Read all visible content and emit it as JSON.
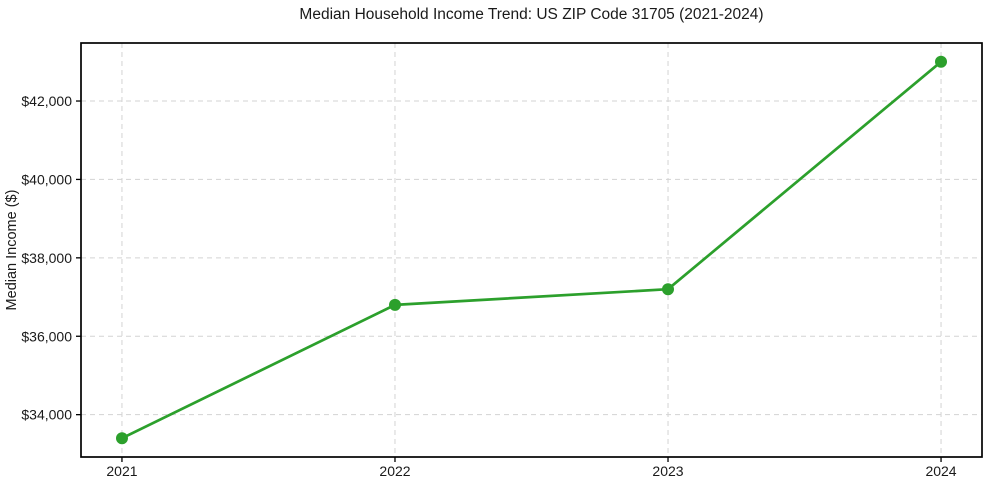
{
  "chart_data": {
    "type": "line",
    "title": "Median Household Income Trend: US ZIP Code 31705 (2021-2024)",
    "xlabel": "",
    "ylabel": "Median Income ($)",
    "x": [
      2021,
      2022,
      2023,
      2024
    ],
    "x_tick_labels": [
      "2021",
      "2022",
      "2023",
      "2024"
    ],
    "series": [
      {
        "name": "Median Household Income",
        "values": [
          33400,
          36800,
          37200,
          43000
        ],
        "color": "#2ca02c",
        "marker": "circle"
      }
    ],
    "y_ticks": [
      34000,
      36000,
      38000,
      40000,
      42000
    ],
    "y_tick_labels": [
      "$34,000",
      "$36,000",
      "$38,000",
      "$40,000",
      "$42,000"
    ],
    "xlim": [
      2020.85,
      2024.15
    ],
    "ylim": [
      32920,
      43480
    ],
    "grid": {
      "visible": true,
      "style": "dashed",
      "color": "#d3d3d3"
    },
    "legend": "none",
    "colors": {
      "line": "#2ca02c",
      "grid": "#d3d3d3",
      "axis_frame": "#000000",
      "tick": "#000000",
      "text": "#1a1a1a",
      "background": "#ffffff"
    }
  }
}
